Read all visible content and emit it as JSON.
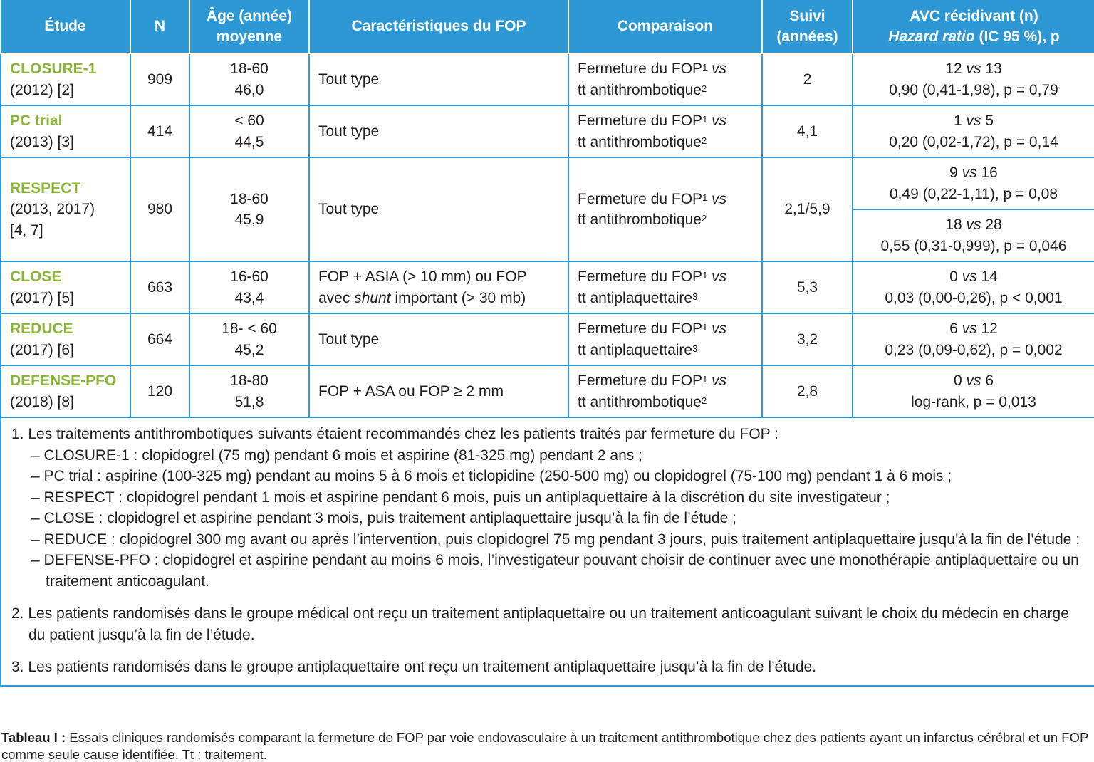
{
  "table": {
    "header": [
      "Étude",
      "N",
      [
        "Âge (année)",
        "moyenne"
      ],
      "Caractéristiques du FOP",
      "Comparaison",
      [
        "Suivi",
        "(années)"
      ],
      [
        "AVC récidivant (n)",
        [
          {
            "em": "Hazard ratio"
          },
          " (IC 95 %), p"
        ]
      ]
    ],
    "rows": [
      {
        "study": "CLOSURE-1",
        "ref": [
          "(2012) [2]"
        ],
        "n": "909",
        "age": [
          "18-60",
          "46,0"
        ],
        "fop": "Tout type",
        "comparison": [
          [
            "Fermeture du FOP",
            {
              "sup": "1"
            },
            {
              "em": " vs"
            }
          ],
          [
            "tt antithrombotique",
            {
              "sup": "2"
            }
          ]
        ],
        "followup": "2",
        "results": [
          [
            [
              "12 ",
              {
                "em": "vs"
              },
              " 13"
            ],
            "0,90 (0,41-1,98), p = 0,79"
          ]
        ]
      },
      {
        "study": "PC trial",
        "ref": [
          "(2013) [3]"
        ],
        "n": "414",
        "age": [
          "< 60",
          "44,5"
        ],
        "fop": "Tout type",
        "comparison": [
          [
            "Fermeture du FOP",
            {
              "sup": "1"
            },
            {
              "em": " vs"
            }
          ],
          [
            "tt antithrombotique",
            {
              "sup": "2"
            }
          ]
        ],
        "followup": "4,1",
        "results": [
          [
            [
              "1 ",
              {
                "em": "vs"
              },
              " 5"
            ],
            "0,20 (0,02-1,72), p = 0,14"
          ]
        ]
      },
      {
        "study": "RESPECT",
        "ref": [
          "(2013, 2017)",
          "[4, 7]"
        ],
        "n": "980",
        "age": [
          "18-60",
          "45,9"
        ],
        "fop": "Tout type",
        "comparison": [
          [
            "Fermeture du FOP",
            {
              "sup": "1"
            },
            {
              "em": " vs"
            }
          ],
          [
            "tt antithrombotique",
            {
              "sup": "2"
            }
          ]
        ],
        "followup": "2,1/5,9",
        "results": [
          [
            [
              "9 ",
              {
                "em": "vs"
              },
              " 16"
            ],
            "0,49 (0,22-1,11), p = 0,08"
          ],
          [
            [
              "18 ",
              {
                "em": "vs"
              },
              " 28"
            ],
            "0,55 (0,31-0,999), p = 0,046"
          ]
        ]
      },
      {
        "study": "CLOSE",
        "ref": [
          "(2017) [5]"
        ],
        "n": "663",
        "age": [
          "16-60",
          "43,4"
        ],
        "fop": [
          "FOP + ASIA (> 10 mm) ou FOP",
          [
            "avec ",
            {
              "em": "shunt"
            },
            " important (> 30 mb)"
          ]
        ],
        "comparison": [
          [
            "Fermeture du FOP",
            {
              "sup": "1"
            },
            {
              "em": " vs"
            }
          ],
          [
            "tt antiplaquettaire",
            {
              "sup": "3"
            }
          ]
        ],
        "followup": "5,3",
        "results": [
          [
            [
              "0 ",
              {
                "em": "vs"
              },
              " 14"
            ],
            "0,03 (0,00-0,26), p < 0,001"
          ]
        ]
      },
      {
        "study": "REDUCE",
        "ref": [
          "(2017) [6]"
        ],
        "n": "664",
        "age": [
          "18- < 60",
          "45,2"
        ],
        "fop": "Tout type",
        "comparison": [
          [
            "Fermeture du FOP",
            {
              "sup": "1"
            },
            {
              "em": " vs"
            }
          ],
          [
            "tt antiplaquettaire",
            {
              "sup": "3"
            }
          ]
        ],
        "followup": "3,2",
        "results": [
          [
            [
              "6 ",
              {
                "em": "vs"
              },
              " 12"
            ],
            "0,23 (0,09-0,62), p = 0,002"
          ]
        ]
      },
      {
        "study": "DEFENSE-PFO",
        "ref": [
          "(2018) [8]"
        ],
        "n": "120",
        "age": [
          "18-80",
          "51,8"
        ],
        "fop": "FOP + ASA ou FOP ≥ 2 mm",
        "comparison": [
          [
            "Fermeture du FOP",
            {
              "sup": "1"
            },
            {
              "em": " vs"
            }
          ],
          [
            "tt antithrombotique",
            {
              "sup": "2"
            }
          ]
        ],
        "followup": "2,8",
        "results": [
          [
            [
              "0 ",
              {
                "em": "vs"
              },
              " 6"
            ],
            "log-rank, p = 0,013"
          ]
        ]
      }
    ],
    "notes": [
      {
        "text": "1. Les traitements antithrombotiques suivants étaient recommandés chez les patients traités par fermeture du FOP :",
        "items": [
          "– CLOSURE-1 : clopidogrel (75 mg) pendant 6 mois et aspirine (81-325 mg) pendant 2 ans ;",
          "– PC trial : aspirine (100-325 mg) pendant au moins 5 à 6 mois et ticlopidine (250-500 mg) ou clopidogrel (75-100 mg) pendant 1 à 6 mois ;",
          "– RESPECT : clopidogrel pendant 1 mois et aspirine pendant 6 mois, puis un antiplaquettaire à la discrétion du site investigateur ;",
          "– CLOSE : clopidogrel et aspirine pendant 3 mois, puis traitement antiplaquettaire jusqu’à la fin de l’étude ;",
          "– REDUCE : clopidogrel 300 mg avant ou après l’intervention, puis clopidogrel 75 mg pendant 3 jours, puis traitement antiplaquettaire jusqu’à la fin de l’étude ;",
          "– DEFENSE-PFO : clopidogrel et aspirine pendant au moins 6 mois, l’investigateur pouvant choisir de continuer avec une monothérapie antiplaquettaire ou un traitement anticoagulant."
        ]
      },
      {
        "text": "2. Les patients randomisés dans le groupe médical ont reçu un traitement antiplaquettaire ou un traitement anticoagulant suivant le choix du médecin en charge du patient jusqu’à la fin de l’étude."
      },
      {
        "text": "3. Les patients randomisés dans le groupe antiplaquettaire ont reçu un traitement antiplaquettaire jusqu’à la fin de l’étude."
      }
    ]
  },
  "caption": {
    "label": "Tableau I :",
    "text": "Essais cliniques randomisés comparant la fermeture de FOP par voie endovasculaire à un traitement antithrombotique chez des patients ayant un infarctus cérébral et un FOP comme seule cause identifiée. Tt : traitement."
  }
}
